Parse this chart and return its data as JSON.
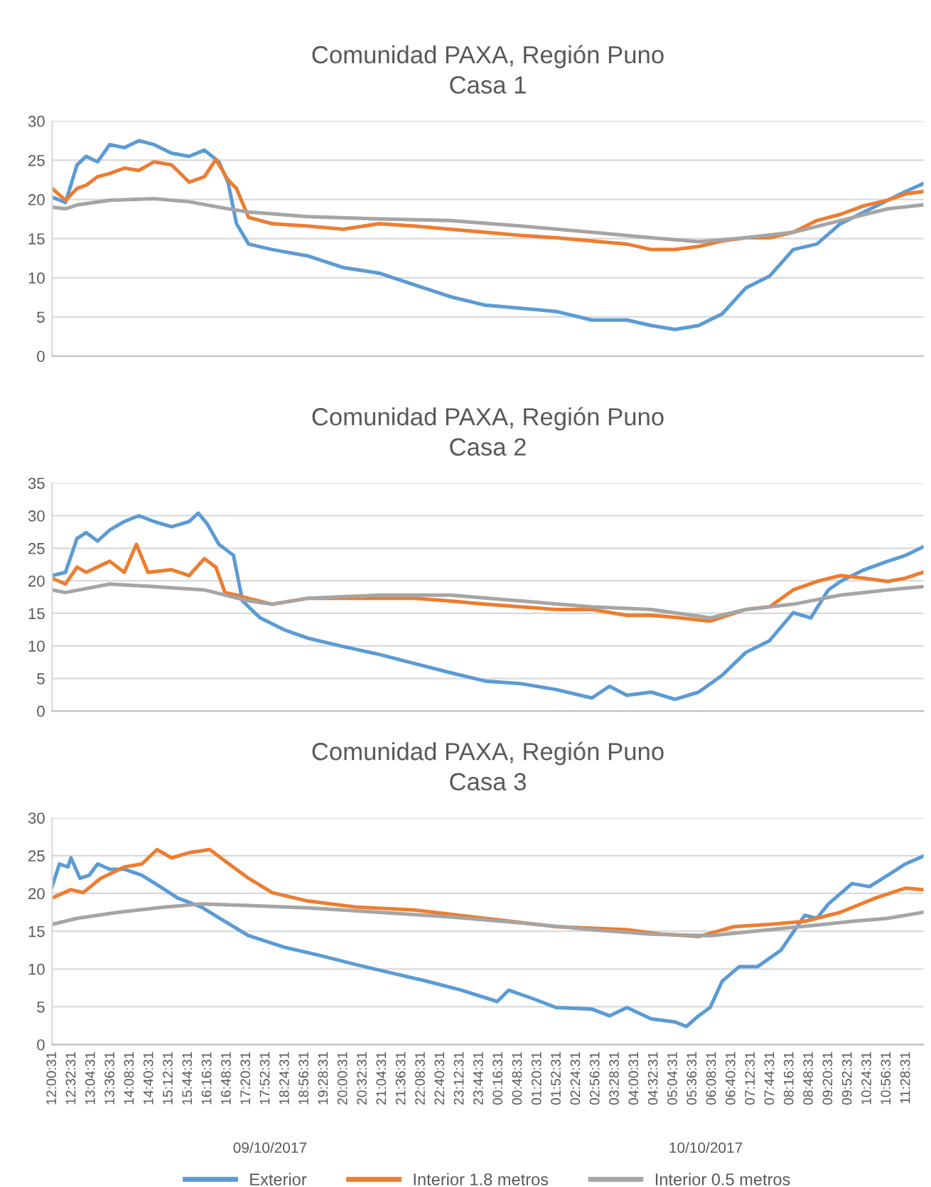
{
  "chart_data": [
    {
      "type": "line",
      "title": "Comunidad PAXA, Región Puno\nCasa 1",
      "xlim": [
        "2017-10-09T12:00",
        "2017-10-10T11:57"
      ],
      "ylim": [
        0,
        30
      ],
      "yticks": [
        0,
        5,
        10,
        15,
        20,
        25,
        30
      ],
      "grid": "y",
      "tick_labels": "y",
      "legend": false,
      "series": [
        {
          "color": "#5b9bd5",
          "x": [
            "2017-10-09T12:00",
            "2017-10-09T12:22",
            "2017-10-09T12:41",
            "2017-10-09T12:56",
            "2017-10-09T13:15",
            "2017-10-09T13:35",
            "2017-10-09T13:59",
            "2017-10-09T14:23",
            "2017-10-09T14:48",
            "2017-10-09T15:17",
            "2017-10-09T15:46",
            "2017-10-09T16:11",
            "2017-10-09T16:35",
            "2017-10-09T16:50",
            "2017-10-09T17:04",
            "2017-10-09T17:24",
            "2017-10-09T18:03",
            "2017-10-09T19:01",
            "2017-10-09T20:00",
            "2017-10-09T20:59",
            "2017-10-09T21:57",
            "2017-10-09T22:56",
            "2017-10-09T23:54",
            "2017-10-10T00:53",
            "2017-10-10T01:51",
            "2017-10-10T02:50",
            "2017-10-10T03:48",
            "2017-10-10T04:28",
            "2017-10-10T05:07",
            "2017-10-10T05:46",
            "2017-10-10T06:25",
            "2017-10-10T07:04",
            "2017-10-10T07:43",
            "2017-10-10T08:22",
            "2017-10-10T09:01",
            "2017-10-10T09:40",
            "2017-10-10T10:19",
            "2017-10-10T10:58",
            "2017-10-10T11:27",
            "2017-10-10T11:56"
          ],
          "values": [
            20.3,
            19.6,
            24.4,
            25.5,
            24.8,
            27.0,
            26.6,
            27.5,
            27.0,
            25.9,
            25.5,
            26.3,
            24.8,
            22.2,
            16.9,
            14.3,
            13.6,
            12.8,
            11.3,
            10.6,
            9.1,
            7.6,
            6.5,
            6.1,
            5.7,
            4.6,
            4.6,
            3.9,
            3.4,
            3.9,
            5.4,
            8.7,
            10.2,
            13.6,
            14.3,
            16.9,
            18.4,
            19.9,
            21.0,
            22.0
          ]
        },
        {
          "color": "#ed7d31",
          "x": [
            "2017-10-09T12:00",
            "2017-10-09T12:22",
            "2017-10-09T12:41",
            "2017-10-09T12:56",
            "2017-10-09T13:15",
            "2017-10-09T13:35",
            "2017-10-09T13:59",
            "2017-10-09T14:23",
            "2017-10-09T14:48",
            "2017-10-09T15:17",
            "2017-10-09T15:46",
            "2017-10-09T16:11",
            "2017-10-09T16:30",
            "2017-10-09T16:50",
            "2017-10-09T17:04",
            "2017-10-09T17:24",
            "2017-10-09T18:03",
            "2017-10-09T19:01",
            "2017-10-09T20:00",
            "2017-10-09T20:59",
            "2017-10-09T21:57",
            "2017-10-09T22:56",
            "2017-10-09T23:54",
            "2017-10-10T00:53",
            "2017-10-10T01:51",
            "2017-10-10T02:50",
            "2017-10-10T03:48",
            "2017-10-10T04:28",
            "2017-10-10T05:07",
            "2017-10-10T05:46",
            "2017-10-10T06:25",
            "2017-10-10T07:04",
            "2017-10-10T07:43",
            "2017-10-10T08:22",
            "2017-10-10T09:01",
            "2017-10-10T09:40",
            "2017-10-10T10:19",
            "2017-10-10T10:58",
            "2017-10-10T11:27",
            "2017-10-10T11:56"
          ],
          "values": [
            21.4,
            19.9,
            21.4,
            21.8,
            22.9,
            23.3,
            24.0,
            23.7,
            24.8,
            24.4,
            22.2,
            22.9,
            25.1,
            22.5,
            21.4,
            17.7,
            16.9,
            16.6,
            16.2,
            16.9,
            16.6,
            16.2,
            15.8,
            15.4,
            15.1,
            14.7,
            14.3,
            13.6,
            13.6,
            14.0,
            14.7,
            15.1,
            15.1,
            15.8,
            17.3,
            18.1,
            19.2,
            19.9,
            20.7,
            21.0
          ]
        },
        {
          "color": "#a5a5a5",
          "x": [
            "2017-10-09T12:00",
            "2017-10-09T12:22",
            "2017-10-09T12:41",
            "2017-10-09T13:35",
            "2017-10-09T14:48",
            "2017-10-09T15:46",
            "2017-10-09T16:50",
            "2017-10-09T17:24",
            "2017-10-09T19:01",
            "2017-10-09T20:59",
            "2017-10-09T22:56",
            "2017-10-10T00:53",
            "2017-10-10T02:50",
            "2017-10-10T04:28",
            "2017-10-10T05:46",
            "2017-10-10T07:04",
            "2017-10-10T08:22",
            "2017-10-10T09:40",
            "2017-10-10T10:58",
            "2017-10-10T11:56"
          ],
          "values": [
            19.0,
            18.8,
            19.3,
            19.9,
            20.1,
            19.7,
            18.8,
            18.4,
            17.8,
            17.5,
            17.3,
            16.6,
            15.8,
            15.1,
            14.6,
            15.1,
            15.8,
            17.3,
            18.8,
            19.3
          ]
        }
      ]
    },
    {
      "type": "line",
      "title": "Comunidad PAXA, Región Puno\nCasa 2",
      "xlim": [
        "2017-10-09T12:00",
        "2017-10-10T11:57"
      ],
      "ylim": [
        0,
        35
      ],
      "yticks": [
        0,
        5,
        10,
        15,
        20,
        25,
        30,
        35
      ],
      "grid": "y",
      "tick_labels": "y",
      "legend": false,
      "series": [
        {
          "color": "#5b9bd5",
          "x": [
            "2017-10-09T12:00",
            "2017-10-09T12:22",
            "2017-10-09T12:41",
            "2017-10-09T12:56",
            "2017-10-09T13:15",
            "2017-10-09T13:35",
            "2017-10-09T13:59",
            "2017-10-09T14:23",
            "2017-10-09T14:48",
            "2017-10-09T15:17",
            "2017-10-09T15:46",
            "2017-10-09T16:01",
            "2017-10-09T16:16",
            "2017-10-09T16:35",
            "2017-10-09T16:59",
            "2017-10-09T17:14",
            "2017-10-09T17:43",
            "2017-10-09T18:22",
            "2017-10-09T19:01",
            "2017-10-09T20:00",
            "2017-10-09T20:59",
            "2017-10-09T21:57",
            "2017-10-09T22:56",
            "2017-10-09T23:54",
            "2017-10-10T00:53",
            "2017-10-10T01:51",
            "2017-10-10T02:50",
            "2017-10-10T03:19",
            "2017-10-10T03:48",
            "2017-10-10T04:28",
            "2017-10-10T05:07",
            "2017-10-10T05:46",
            "2017-10-10T06:25",
            "2017-10-10T07:04",
            "2017-10-10T07:43",
            "2017-10-10T08:22",
            "2017-10-10T08:51",
            "2017-10-10T09:20",
            "2017-10-10T09:40",
            "2017-10-10T10:19",
            "2017-10-10T10:58",
            "2017-10-10T11:27",
            "2017-10-10T11:56"
          ],
          "values": [
            20.8,
            21.3,
            26.5,
            27.4,
            26.1,
            27.8,
            29.1,
            30.0,
            29.1,
            28.3,
            29.1,
            30.4,
            28.7,
            25.6,
            23.9,
            16.9,
            14.3,
            12.5,
            11.2,
            9.9,
            8.7,
            7.3,
            5.9,
            4.6,
            4.2,
            3.3,
            2.0,
            3.8,
            2.4,
            2.9,
            1.8,
            2.9,
            5.5,
            9.0,
            10.8,
            15.1,
            14.3,
            18.6,
            19.9,
            21.7,
            23.0,
            23.9,
            25.2
          ]
        },
        {
          "color": "#ed7d31",
          "x": [
            "2017-10-09T12:00",
            "2017-10-09T12:22",
            "2017-10-09T12:41",
            "2017-10-09T12:56",
            "2017-10-09T13:35",
            "2017-10-09T13:59",
            "2017-10-09T14:19",
            "2017-10-09T14:38",
            "2017-10-09T15:17",
            "2017-10-09T15:46",
            "2017-10-09T16:11",
            "2017-10-09T16:30",
            "2017-10-09T16:45",
            "2017-10-09T17:04",
            "2017-10-09T17:24",
            "2017-10-09T18:03",
            "2017-10-09T19:01",
            "2017-10-09T20:00",
            "2017-10-09T20:59",
            "2017-10-09T21:57",
            "2017-10-09T22:56",
            "2017-10-09T23:54",
            "2017-10-10T00:53",
            "2017-10-10T01:51",
            "2017-10-10T02:50",
            "2017-10-10T03:48",
            "2017-10-10T04:28",
            "2017-10-10T05:07",
            "2017-10-10T06:05",
            "2017-10-10T07:04",
            "2017-10-10T07:43",
            "2017-10-10T08:22",
            "2017-10-10T09:01",
            "2017-10-10T09:40",
            "2017-10-10T10:19",
            "2017-10-10T10:58",
            "2017-10-10T11:27",
            "2017-10-10T11:56"
          ],
          "values": [
            20.4,
            19.5,
            22.1,
            21.3,
            23.0,
            21.3,
            25.6,
            21.3,
            21.7,
            20.8,
            23.4,
            22.1,
            18.2,
            17.8,
            17.3,
            16.4,
            17.3,
            17.3,
            17.3,
            17.3,
            16.9,
            16.4,
            16.0,
            15.6,
            15.6,
            14.7,
            14.7,
            14.4,
            13.8,
            15.6,
            16.0,
            18.6,
            19.9,
            20.8,
            20.4,
            19.9,
            20.4,
            21.3
          ]
        },
        {
          "color": "#a5a5a5",
          "x": [
            "2017-10-09T12:00",
            "2017-10-09T12:22",
            "2017-10-09T13:35",
            "2017-10-09T14:48",
            "2017-10-09T16:11",
            "2017-10-09T17:24",
            "2017-10-09T18:03",
            "2017-10-09T19:01",
            "2017-10-09T20:59",
            "2017-10-09T22:56",
            "2017-10-10T00:53",
            "2017-10-10T02:50",
            "2017-10-10T04:28",
            "2017-10-10T06:05",
            "2017-10-10T07:04",
            "2017-10-10T08:22",
            "2017-10-10T09:40",
            "2017-10-10T10:58",
            "2017-10-10T11:56"
          ],
          "values": [
            18.6,
            18.2,
            19.5,
            19.1,
            18.6,
            16.9,
            16.4,
            17.3,
            17.8,
            17.8,
            16.9,
            16.0,
            15.6,
            14.3,
            15.6,
            16.4,
            17.8,
            18.6,
            19.1
          ]
        }
      ]
    },
    {
      "type": "line",
      "title": "Comunidad PAXA, Región Puno\nCasa 3",
      "xlim": [
        "2017-10-09T12:00",
        "2017-10-10T11:57"
      ],
      "ylim": [
        0,
        30
      ],
      "yticks": [
        0,
        5,
        10,
        15,
        20,
        25,
        30
      ],
      "grid": "y",
      "legend": "bottom",
      "annotations": [
        "09/10/2017",
        "10/10/2017"
      ],
      "xticks": [
        {
          "value": "2017-10-09T12:00:31",
          "label": "12:00:31"
        },
        {
          "value": "2017-10-09T12:32:31",
          "label": "12:32:31"
        },
        {
          "value": "2017-10-09T13:04:31",
          "label": "13:04:31"
        },
        {
          "value": "2017-10-09T13:36:31",
          "label": "13:36:31"
        },
        {
          "value": "2017-10-09T14:08:31",
          "label": "14:08:31"
        },
        {
          "value": "2017-10-09T14:40:31",
          "label": "14:40:31"
        },
        {
          "value": "2017-10-09T15:12:31",
          "label": "15:12:31"
        },
        {
          "value": "2017-10-09T15:44:31",
          "label": "15:44:31"
        },
        {
          "value": "2017-10-09T16:16:31",
          "label": "16:16:31"
        },
        {
          "value": "2017-10-09T16:48:31",
          "label": "16:48:31"
        },
        {
          "value": "2017-10-09T17:20:31",
          "label": "17:20:31"
        },
        {
          "value": "2017-10-09T17:52:31",
          "label": "17:52:31"
        },
        {
          "value": "2017-10-09T18:24:31",
          "label": "18:24:31"
        },
        {
          "value": "2017-10-09T18:56:31",
          "label": "18:56:31"
        },
        {
          "value": "2017-10-09T19:28:31",
          "label": "19:28:31"
        },
        {
          "value": "2017-10-09T20:00:31",
          "label": "20:00:31"
        },
        {
          "value": "2017-10-09T20:32:31",
          "label": "20:32:31"
        },
        {
          "value": "2017-10-09T21:04:31",
          "label": "21:04:31"
        },
        {
          "value": "2017-10-09T21:36:31",
          "label": "21:36:31"
        },
        {
          "value": "2017-10-09T22:08:31",
          "label": "22:08:31"
        },
        {
          "value": "2017-10-09T22:40:31",
          "label": "22:40:31"
        },
        {
          "value": "2017-10-09T23:12:31",
          "label": "23:12:31"
        },
        {
          "value": "2017-10-09T23:44:31",
          "label": "23:44:31"
        },
        {
          "value": "2017-10-10T00:16:31",
          "label": "00:16:31"
        },
        {
          "value": "2017-10-10T00:48:31",
          "label": "00:48:31"
        },
        {
          "value": "2017-10-10T01:20:31",
          "label": "01:20:31"
        },
        {
          "value": "2017-10-10T01:52:31",
          "label": "01:52:31"
        },
        {
          "value": "2017-10-10T02:24:31",
          "label": "02:24:31"
        },
        {
          "value": "2017-10-10T02:56:31",
          "label": "02:56:31"
        },
        {
          "value": "2017-10-10T03:28:31",
          "label": "03:28:31"
        },
        {
          "value": "2017-10-10T04:00:31",
          "label": "04:00:31"
        },
        {
          "value": "2017-10-10T04:32:31",
          "label": "04:32:31"
        },
        {
          "value": "2017-10-10T05:04:31",
          "label": "05:04:31"
        },
        {
          "value": "2017-10-10T05:36:31",
          "label": "05:36:31"
        },
        {
          "value": "2017-10-10T06:08:31",
          "label": "06:08:31"
        },
        {
          "value": "2017-10-10T06:40:31",
          "label": "06:40:31"
        },
        {
          "value": "2017-10-10T07:12:31",
          "label": "07:12:31"
        },
        {
          "value": "2017-10-10T07:44:31",
          "label": "07:44:31"
        },
        {
          "value": "2017-10-10T08:16:31",
          "label": "08:16:31"
        },
        {
          "value": "2017-10-10T08:48:31",
          "label": "08:48:31"
        },
        {
          "value": "2017-10-10T09:20:31",
          "label": "09:20:31"
        },
        {
          "value": "2017-10-10T09:52:31",
          "label": "09:52:31"
        },
        {
          "value": "2017-10-10T10:24:31",
          "label": "10:24:31"
        },
        {
          "value": "2017-10-10T10:56:31",
          "label": "10:56:31"
        },
        {
          "value": "2017-10-10T11:28:31",
          "label": "11:28:31"
        }
      ],
      "series": [
        {
          "name": "Exterior",
          "color": "#5b9bd5",
          "x": [
            "2017-10-09T12:00",
            "2017-10-09T12:12",
            "2017-10-09T12:26",
            "2017-10-09T12:31",
            "2017-10-09T12:46",
            "2017-10-09T13:01",
            "2017-10-09T13:15",
            "2017-10-09T13:35",
            "2017-10-09T13:59",
            "2017-10-09T14:28",
            "2017-10-09T14:58",
            "2017-10-09T15:27",
            "2017-10-09T16:06",
            "2017-10-09T16:45",
            "2017-10-09T17:24",
            "2017-10-09T18:22",
            "2017-10-09T19:21",
            "2017-10-09T20:20",
            "2017-10-09T21:18",
            "2017-10-09T22:17",
            "2017-10-09T23:15",
            "2017-10-10T00:14",
            "2017-10-10T00:33",
            "2017-10-10T01:12",
            "2017-10-10T01:51",
            "2017-10-10T02:50",
            "2017-10-10T03:19",
            "2017-10-10T03:48",
            "2017-10-10T04:28",
            "2017-10-10T05:07",
            "2017-10-10T05:26",
            "2017-10-10T05:46",
            "2017-10-10T06:05",
            "2017-10-10T06:25",
            "2017-10-10T06:53",
            "2017-10-10T07:23",
            "2017-10-10T08:02",
            "2017-10-10T08:41",
            "2017-10-10T09:01",
            "2017-10-10T09:20",
            "2017-10-10T09:59",
            "2017-10-10T10:28",
            "2017-10-10T10:58",
            "2017-10-10T11:27",
            "2017-10-10T11:56"
          ],
          "values": [
            20.9,
            23.9,
            23.5,
            24.7,
            22.0,
            22.4,
            23.9,
            23.2,
            23.2,
            22.4,
            20.9,
            19.4,
            18.2,
            16.3,
            14.4,
            12.9,
            11.8,
            10.6,
            9.5,
            8.4,
            7.2,
            5.7,
            7.2,
            6.1,
            4.9,
            4.7,
            3.8,
            4.9,
            3.4,
            3.0,
            2.4,
            3.8,
            4.9,
            8.4,
            10.3,
            10.3,
            12.5,
            17.1,
            16.7,
            18.6,
            21.3,
            20.9,
            22.4,
            23.9,
            24.9
          ]
        },
        {
          "name": "Interior 1.8 metros",
          "color": "#ed7d31",
          "x": [
            "2017-10-09T12:00",
            "2017-10-09T12:31",
            "2017-10-09T12:51",
            "2017-10-09T13:20",
            "2017-10-09T13:59",
            "2017-10-09T14:28",
            "2017-10-09T14:53",
            "2017-10-09T15:17",
            "2017-10-09T15:46",
            "2017-10-09T16:20",
            "2017-10-09T16:45",
            "2017-10-09T17:24",
            "2017-10-09T18:03",
            "2017-10-09T19:01",
            "2017-10-09T20:20",
            "2017-10-09T21:57",
            "2017-10-09T23:54",
            "2017-10-10T01:51",
            "2017-10-10T03:48",
            "2017-10-10T04:47",
            "2017-10-10T05:46",
            "2017-10-10T06:44",
            "2017-10-10T07:43",
            "2017-10-10T08:41",
            "2017-10-10T09:40",
            "2017-10-10T10:38",
            "2017-10-10T11:27",
            "2017-10-10T11:56"
          ],
          "values": [
            19.4,
            20.5,
            20.1,
            22.0,
            23.5,
            23.9,
            25.8,
            24.7,
            25.4,
            25.8,
            24.3,
            22.0,
            20.1,
            19.0,
            18.2,
            17.8,
            16.7,
            15.6,
            15.2,
            14.6,
            14.3,
            15.6,
            15.9,
            16.3,
            17.5,
            19.4,
            20.7,
            20.5
          ]
        },
        {
          "name": "Interior 0.5 metros",
          "color": "#a5a5a5",
          "x": [
            "2017-10-09T12:00",
            "2017-10-09T12:41",
            "2017-10-09T13:49",
            "2017-10-09T15:07",
            "2017-10-09T16:06",
            "2017-10-09T17:24",
            "2017-10-09T19:01",
            "2017-10-09T20:59",
            "2017-10-09T22:56",
            "2017-10-10T00:53",
            "2017-10-10T02:50",
            "2017-10-10T04:28",
            "2017-10-10T06:05",
            "2017-10-10T07:43",
            "2017-10-10T09:01",
            "2017-10-10T09:59",
            "2017-10-10T10:58",
            "2017-10-10T11:56"
          ],
          "values": [
            15.9,
            16.7,
            17.5,
            18.2,
            18.6,
            18.4,
            18.1,
            17.5,
            16.9,
            16.1,
            15.2,
            14.6,
            14.4,
            15.2,
            15.8,
            16.3,
            16.7,
            17.5
          ]
        }
      ]
    }
  ]
}
